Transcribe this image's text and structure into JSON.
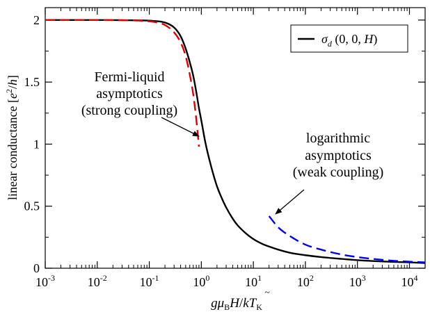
{
  "chart_data": {
    "type": "line",
    "xscale": "log",
    "xlim": [
      0.001,
      20000
    ],
    "ylim": [
      0,
      2.1
    ],
    "x_ticks": [
      {
        "base": "10",
        "exp": "-3"
      },
      {
        "base": "10",
        "exp": "-2"
      },
      {
        "base": "10",
        "exp": "-1"
      },
      {
        "base": "10",
        "exp": "0"
      },
      {
        "base": "10",
        "exp": "1"
      },
      {
        "base": "10",
        "exp": "2"
      },
      {
        "base": "10",
        "exp": "3"
      },
      {
        "base": "10",
        "exp": "4"
      }
    ],
    "y_ticks": [
      "0",
      "0.5",
      "1",
      "1.5",
      "2"
    ],
    "ylabel": "linear conductance [e²/h]",
    "xlabel": "gμBH/kT̃K",
    "legend": {
      "position": "top-right",
      "entries": [
        "σd (0, 0, H)"
      ]
    },
    "series": [
      {
        "name": "σd (0, 0, H)",
        "color": "#000000",
        "style": "solid",
        "x": [
          0.001,
          0.01,
          0.05,
          0.1,
          0.2,
          0.3,
          0.4,
          0.5,
          0.6,
          0.7,
          0.8,
          0.9,
          1.0,
          1.2,
          1.5,
          2,
          2.5,
          3,
          4,
          5,
          7,
          10,
          15,
          20,
          30,
          50,
          100,
          200,
          500,
          1000,
          2000,
          5000,
          10000,
          20000
        ],
        "values": [
          2.0,
          2.0,
          1.998,
          1.995,
          1.98,
          1.94,
          1.87,
          1.77,
          1.66,
          1.55,
          1.42,
          1.29,
          1.19,
          1.01,
          0.84,
          0.66,
          0.56,
          0.49,
          0.4,
          0.345,
          0.285,
          0.235,
          0.195,
          0.175,
          0.15,
          0.125,
          0.105,
          0.09,
          0.075,
          0.065,
          0.058,
          0.051,
          0.047,
          0.042
        ]
      },
      {
        "name": "",
        "color": "#e00000",
        "style": "dashed",
        "x": [
          0.001,
          0.01,
          0.05,
          0.1,
          0.15,
          0.2,
          0.3,
          0.4,
          0.5,
          0.6,
          0.7,
          0.8,
          0.9
        ],
        "values": [
          2.0,
          2.0,
          1.997,
          1.99,
          1.978,
          1.96,
          1.9,
          1.82,
          1.71,
          1.56,
          1.4,
          1.2,
          0.98
        ]
      },
      {
        "name": "",
        "color": "#0000ee",
        "style": "dashed",
        "x": [
          20,
          30,
          50,
          100,
          200,
          500,
          1000,
          2000,
          5000,
          10000,
          20000
        ],
        "values": [
          0.42,
          0.33,
          0.26,
          0.19,
          0.15,
          0.11,
          0.09,
          0.075,
          0.06,
          0.053,
          0.047
        ]
      }
    ],
    "annotations": [
      {
        "lines": [
          "Fermi-liquid",
          "asymptotics",
          "(strong coupling)"
        ],
        "arrow_to": {
          "x": 0.9,
          "y": 1.02
        }
      },
      {
        "lines": [
          "logarithmic",
          "asymptotics",
          "(weak coupling)"
        ],
        "arrow_to": {
          "x": 20,
          "y": 0.38
        }
      }
    ]
  }
}
